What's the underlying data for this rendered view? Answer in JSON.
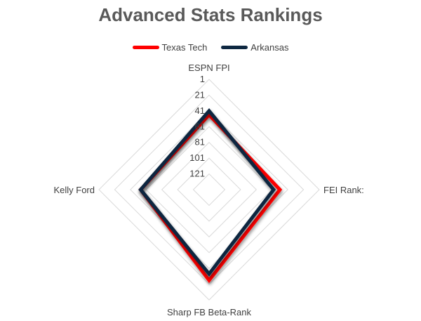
{
  "chart_data": {
    "type": "radar",
    "title": "Advanced Stats Rankings",
    "axes": [
      "ESPN FPI",
      "FEI Rank:",
      "Sharp FB Beta-Rank",
      "Kelly Ford"
    ],
    "radial_ticks": [
      "1",
      "21",
      "41",
      "61",
      "81",
      "101",
      "121"
    ],
    "radial_range": [
      1,
      141
    ],
    "radial_reversed": true,
    "legend_position": "top",
    "series": [
      {
        "name": "Texas Tech",
        "color": "#ff0000",
        "values": [
          46,
          51,
          26,
          54
        ]
      },
      {
        "name": "Arkansas",
        "color": "#0e2841",
        "values": [
          41,
          59,
          34,
          54
        ]
      }
    ]
  }
}
